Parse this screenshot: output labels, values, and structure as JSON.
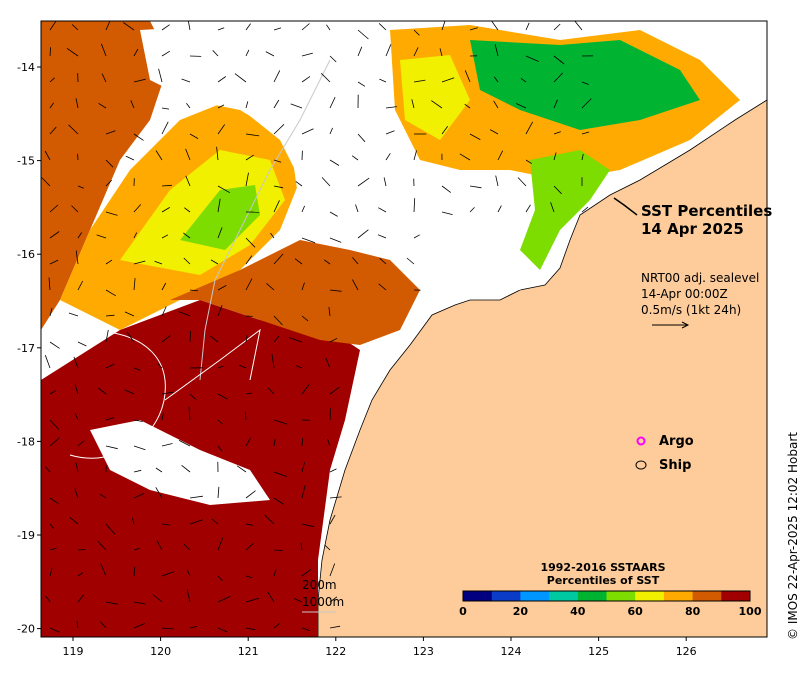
{
  "map": {
    "title_line1": "SST Percentiles",
    "title_line2": "14 Apr 2025",
    "info_line1": "NRT00 adj. sealevel",
    "info_line2": "14-Apr 00:00Z",
    "info_line3": "0.5m/s (1kt 24h)",
    "credit": "© IMOS 22-Apr-2025 12:02 Hobart",
    "legend": {
      "argo_label": "Argo",
      "ship_label": "Ship",
      "argo_color": "#ff00ff"
    },
    "depth_labels": [
      "200m",
      "1000m"
    ],
    "colorbar": {
      "title_line1": "1992-2016 SSTAARS",
      "title_line2": "Percentiles of SST",
      "ticks": [
        "0",
        "20",
        "40",
        "60",
        "80",
        "100"
      ],
      "colors": [
        "#000080",
        "#0a3cc8",
        "#0096ff",
        "#00c8a0",
        "#00b432",
        "#7ddc00",
        "#f0f000",
        "#ffaa00",
        "#d25a00",
        "#a00000"
      ]
    },
    "axes": {
      "lon_ticks": [
        "119",
        "120",
        "121",
        "122",
        "123",
        "124",
        "125",
        "126"
      ],
      "lat_ticks": [
        "-14",
        "-15",
        "-16",
        "-17",
        "-18",
        "-19",
        "-20"
      ]
    },
    "colors": {
      "land": "#fdcc9a",
      "no_data": "#ffffff"
    }
  }
}
